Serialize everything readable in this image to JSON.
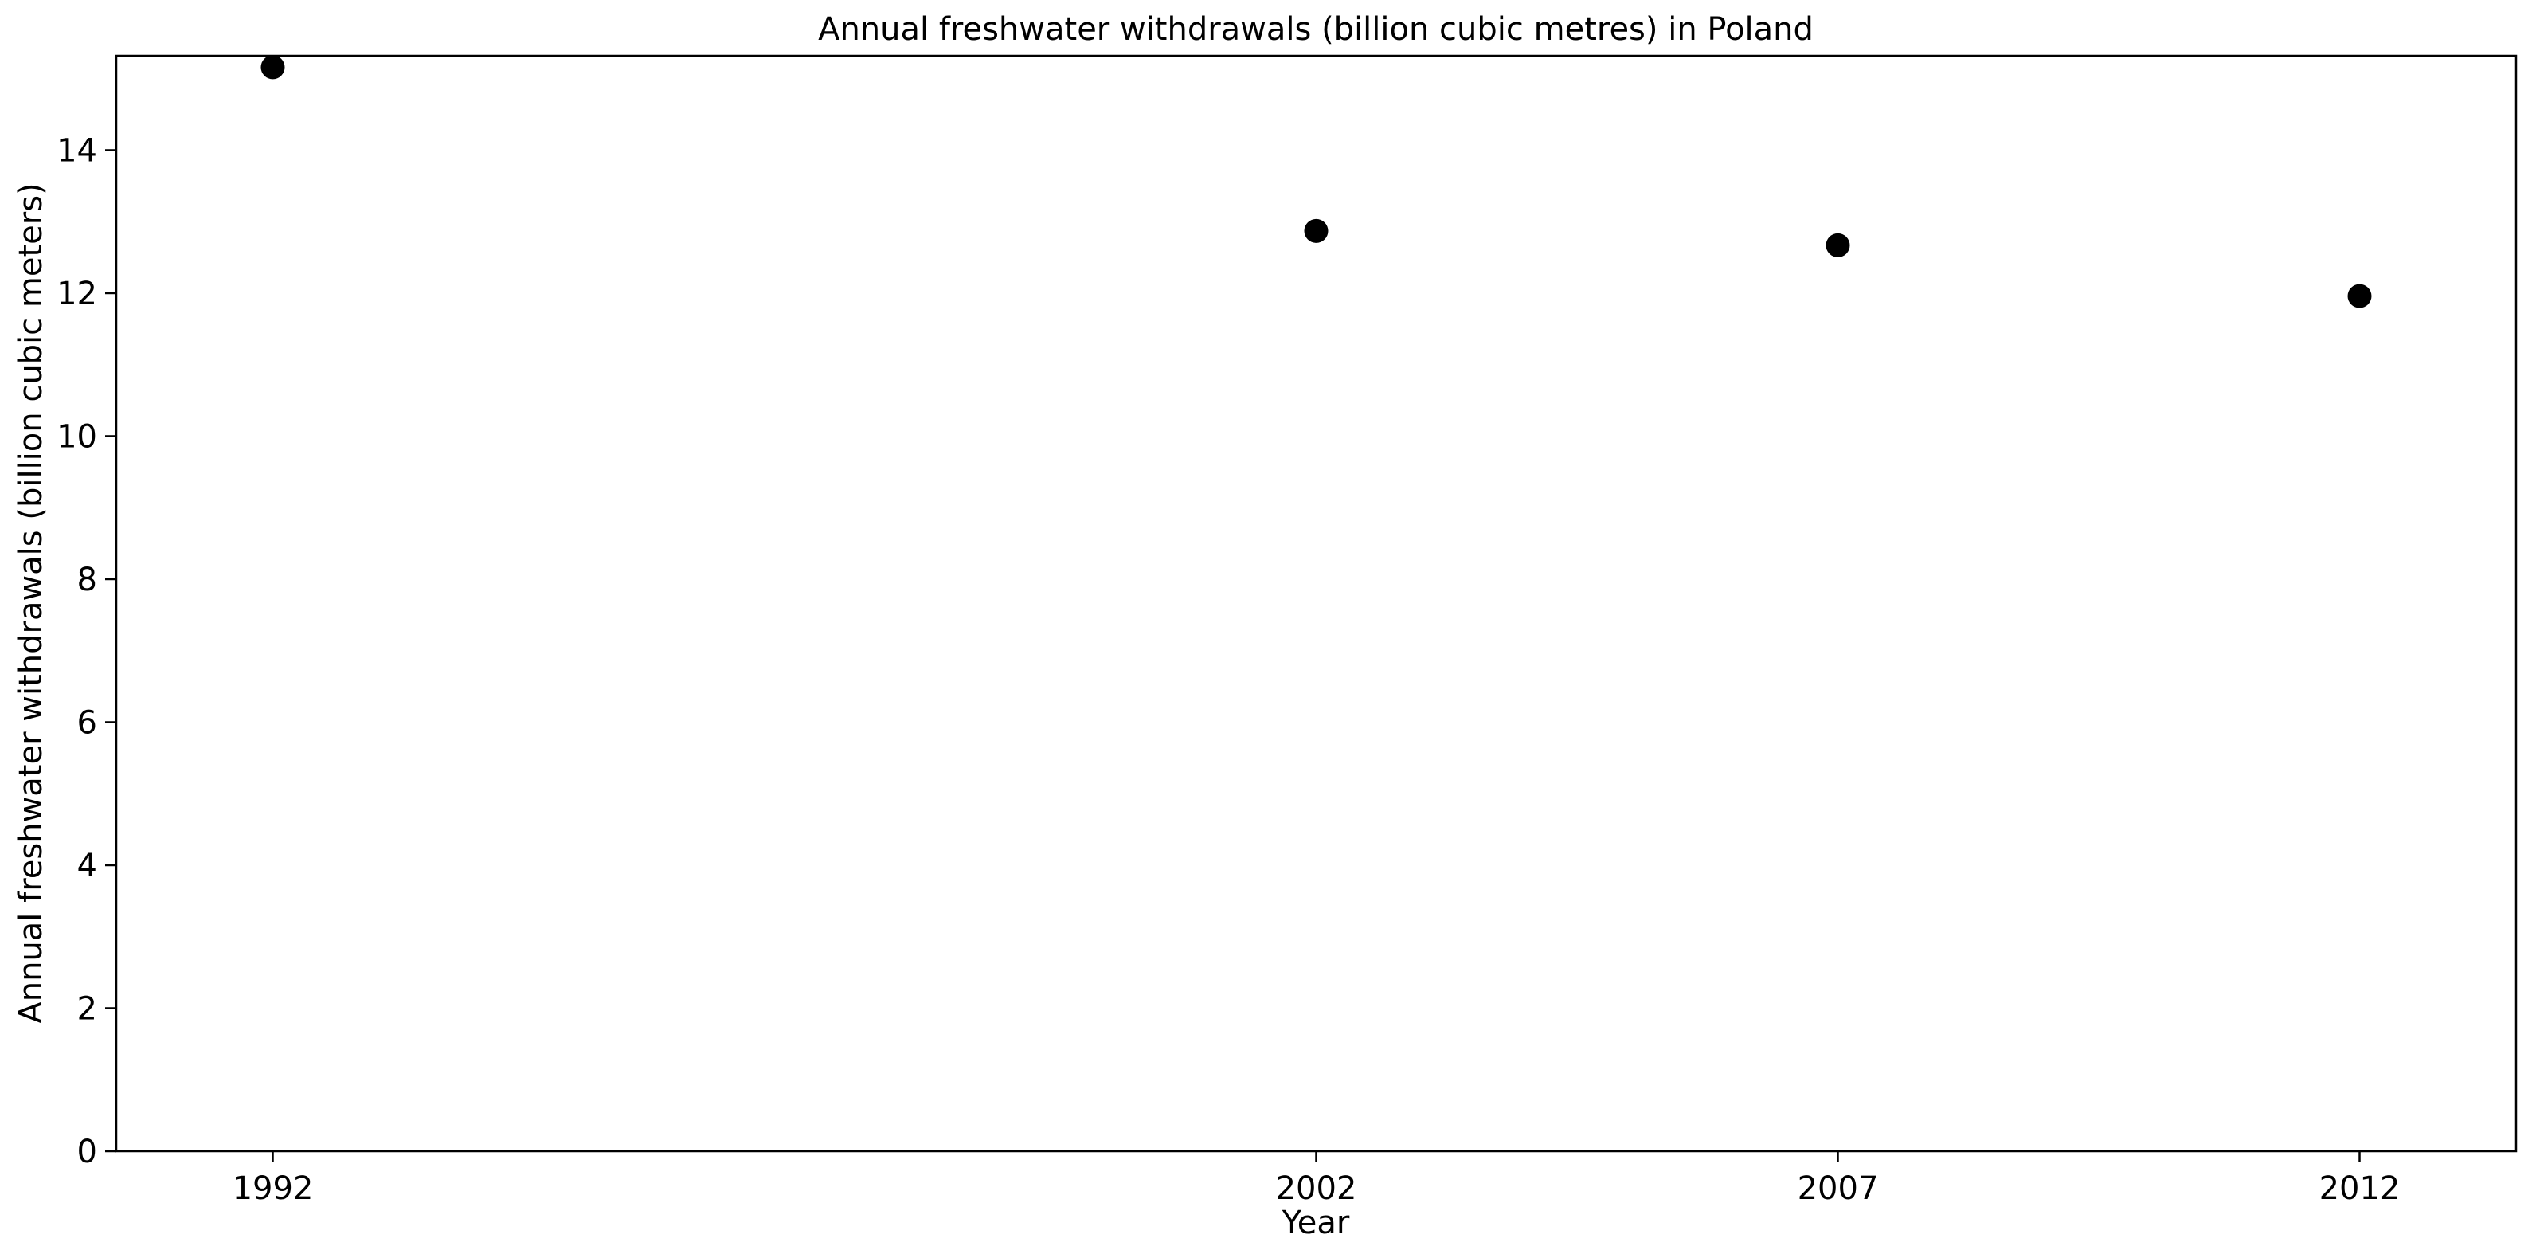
{
  "chart_data": {
    "type": "scatter",
    "title": "Annual freshwater withdrawals (billion cubic metres) in Poland",
    "xlabel": "Year",
    "ylabel": "Annual freshwater withdrawals (billion cubic meters)",
    "categories": [
      "1992",
      "2002",
      "2007",
      "2012"
    ],
    "values": [
      15.16,
      12.87,
      12.67,
      11.96
    ],
    "ylim": [
      0,
      15.32
    ],
    "yticks": [
      0,
      2,
      4,
      6,
      8,
      10,
      12,
      14
    ],
    "grid": false,
    "legend": "none",
    "marker_color": "#000000"
  }
}
